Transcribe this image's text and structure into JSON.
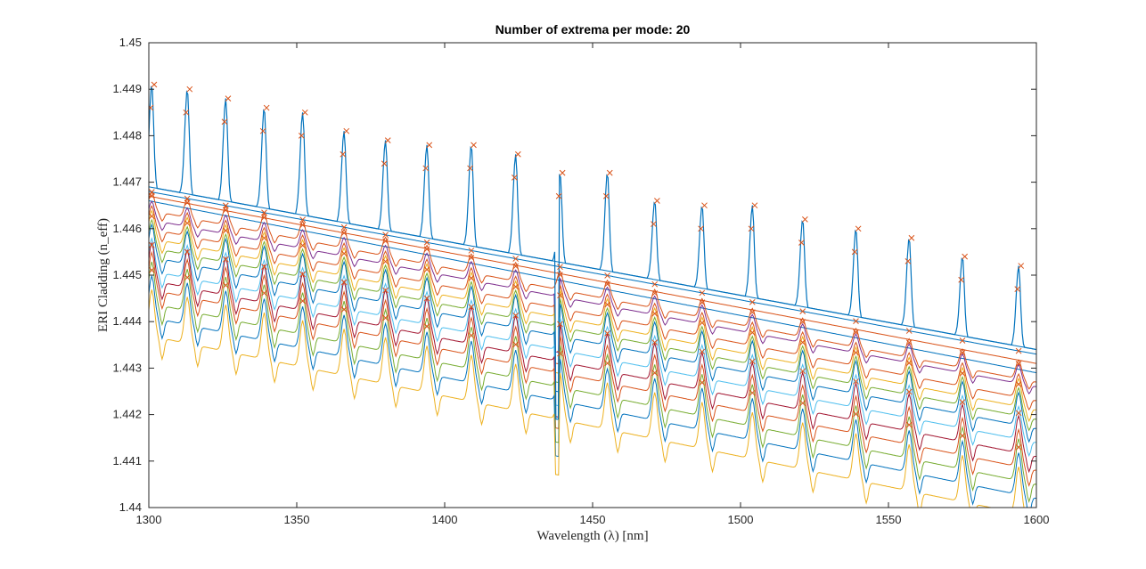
{
  "chart_data": {
    "type": "line",
    "title": "Number of extrema per mode: 20",
    "xlabel": "Wavelength (λ) [nm]",
    "ylabel": "ERI Cladding (n_eff)",
    "xlim": [
      1300,
      1600
    ],
    "ylim": [
      1.44,
      1.45
    ],
    "xticks": [
      1300,
      1350,
      1400,
      1450,
      1500,
      1550,
      1600
    ],
    "xtick_labels": [
      "1300",
      "1350",
      "1400",
      "1450",
      "1500",
      "1550",
      "1600"
    ],
    "yticks": [
      1.44,
      1.441,
      1.442,
      1.443,
      1.444,
      1.445,
      1.446,
      1.447,
      1.448,
      1.449,
      1.45
    ],
    "ytick_labels": [
      "1.44",
      "1.441",
      "1.442",
      "1.443",
      "1.444",
      "1.445",
      "1.446",
      "1.447",
      "1.448",
      "1.449",
      "1.45"
    ],
    "grid": false,
    "legend": "none",
    "marker_color": "#d95319",
    "colors": [
      "#0072bd",
      "#d95319",
      "#edb120",
      "#7e2f8e",
      "#77ac30",
      "#4dbeee",
      "#a2142f"
    ],
    "peak_wavelengths": [
      1301,
      1313,
      1326,
      1339,
      1352,
      1366,
      1380,
      1394,
      1409,
      1424,
      1439,
      1455,
      1471,
      1487,
      1504,
      1521,
      1539,
      1557,
      1575,
      1594
    ],
    "series": [
      {
        "start": 1.4469,
        "end": 1.4434,
        "color": "#0072bd",
        "amp": 0.0
      },
      {
        "start": 1.4468,
        "end": 1.4433,
        "color": "#0072bd",
        "amp": 0.0
      },
      {
        "start": 1.4467,
        "end": 1.4431,
        "color": "#d95319",
        "amp": 0.0
      },
      {
        "start": 1.4466,
        "end": 1.4429,
        "color": "#0072bd",
        "amp": 0.0
      },
      {
        "start": 1.4464,
        "end": 1.4427,
        "color": "#d95319",
        "amp": 0.0004
      },
      {
        "start": 1.4462,
        "end": 1.4426,
        "color": "#7e2f8e",
        "amp": 0.0004
      },
      {
        "start": 1.446,
        "end": 1.4423,
        "color": "#d95319",
        "amp": 0.0005
      },
      {
        "start": 1.4458,
        "end": 1.4421,
        "color": "#edb120",
        "amp": 0.0006
      },
      {
        "start": 1.4456,
        "end": 1.4419,
        "color": "#77ac30",
        "amp": 0.0006
      },
      {
        "start": 1.4454,
        "end": 1.4417,
        "color": "#0072bd",
        "amp": 0.0007
      },
      {
        "start": 1.4451,
        "end": 1.4414,
        "color": "#4dbeee",
        "amp": 0.0007
      },
      {
        "start": 1.4449,
        "end": 1.4411,
        "color": "#a2142f",
        "amp": 0.0008
      },
      {
        "start": 1.4447,
        "end": 1.4408,
        "color": "#d95319",
        "amp": 0.0008
      },
      {
        "start": 1.4444,
        "end": 1.4405,
        "color": "#77ac30",
        "amp": 0.0009
      },
      {
        "start": 1.4441,
        "end": 1.4402,
        "color": "#0072bd",
        "amp": 0.0009
      },
      {
        "start": 1.4437,
        "end": 1.4398,
        "color": "#edb120",
        "amp": 0.001
      }
    ],
    "main_peak_series": {
      "color": "#0072bd",
      "base_start": 1.4469,
      "base_end": 1.4434,
      "peak_values": [
        1.4491,
        1.449,
        1.4488,
        1.4486,
        1.4485,
        1.4481,
        1.4479,
        1.4478,
        1.4478,
        1.4476,
        1.4472,
        1.4472,
        1.4466,
        1.4465,
        1.4465,
        1.4462,
        1.446,
        1.4458,
        1.4454,
        1.4452
      ]
    },
    "anomaly": {
      "x": 1438,
      "y_min": 1.4419,
      "y_max": 1.4452
    }
  }
}
